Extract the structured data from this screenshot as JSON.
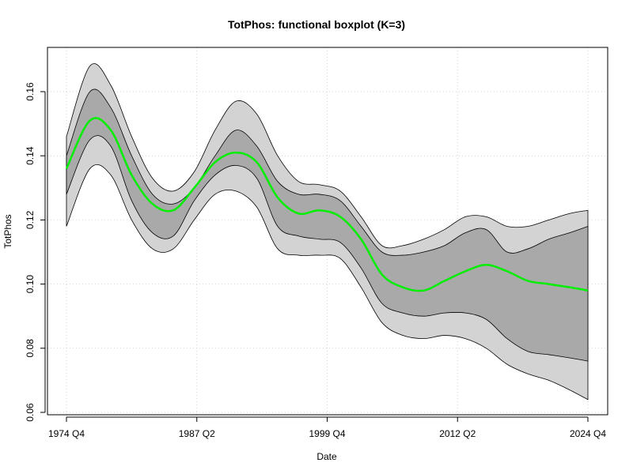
{
  "chart_data": {
    "type": "area",
    "title": "TotPhos: functional boxplot (K=3)",
    "xlabel": "Date",
    "ylabel": "TotPhos",
    "x_ticks": [
      "1974 Q4",
      "1987 Q2",
      "1999 Q4",
      "2012 Q2",
      "2024 Q4"
    ],
    "y_ticks": [
      "0.06",
      "0.08",
      "0.10",
      "0.12",
      "0.14",
      "0.16"
    ],
    "ylim": [
      0.06,
      0.17
    ],
    "grid": true,
    "x": [
      "1974 Q4",
      "1977 Q1",
      "1979 Q1",
      "1981 Q1",
      "1983 Q1",
      "1985 Q1",
      "1987 Q1",
      "1989 Q1",
      "1991 Q1",
      "1993 Q1",
      "1995 Q1",
      "1997 Q1",
      "1999 Q1",
      "2001 Q1",
      "2003 Q1",
      "2005 Q1",
      "2007 Q1",
      "2009 Q1",
      "2011 Q1",
      "2013 Q1",
      "2015 Q1",
      "2017 Q1",
      "2019 Q1",
      "2021 Q1",
      "2023 Q1",
      "2024 Q4"
    ],
    "bands": [
      {
        "role": "outer-envelope",
        "color": "#d3d3d3",
        "upper": [
          0.146,
          0.168,
          0.162,
          0.146,
          0.133,
          0.129,
          0.135,
          0.148,
          0.157,
          0.153,
          0.14,
          0.132,
          0.131,
          0.129,
          0.121,
          0.112,
          0.112,
          0.114,
          0.117,
          0.121,
          0.121,
          0.118,
          0.118,
          0.12,
          0.122,
          0.123
        ],
        "lower": [
          0.118,
          0.136,
          0.134,
          0.12,
          0.111,
          0.111,
          0.12,
          0.128,
          0.129,
          0.124,
          0.111,
          0.109,
          0.109,
          0.108,
          0.099,
          0.088,
          0.084,
          0.083,
          0.084,
          0.083,
          0.08,
          0.075,
          0.072,
          0.07,
          0.067,
          0.064
        ]
      },
      {
        "role": "central-50-percent",
        "color": "#a9a9a9",
        "upper": [
          0.14,
          0.16,
          0.155,
          0.14,
          0.128,
          0.125,
          0.13,
          0.14,
          0.148,
          0.143,
          0.132,
          0.128,
          0.128,
          0.126,
          0.118,
          0.11,
          0.109,
          0.11,
          0.112,
          0.116,
          0.117,
          0.11,
          0.111,
          0.114,
          0.116,
          0.118
        ],
        "lower": [
          0.128,
          0.145,
          0.143,
          0.126,
          0.116,
          0.115,
          0.126,
          0.134,
          0.137,
          0.133,
          0.118,
          0.115,
          0.114,
          0.113,
          0.105,
          0.094,
          0.091,
          0.09,
          0.091,
          0.091,
          0.089,
          0.083,
          0.079,
          0.078,
          0.077,
          0.076
        ]
      }
    ],
    "series": [
      {
        "role": "median",
        "color": "#00ee00",
        "values": [
          0.136,
          0.151,
          0.148,
          0.134,
          0.125,
          0.123,
          0.13,
          0.138,
          0.141,
          0.138,
          0.127,
          0.122,
          0.123,
          0.121,
          0.114,
          0.103,
          0.099,
          0.098,
          0.101,
          0.104,
          0.106,
          0.104,
          0.101,
          0.1,
          0.099,
          0.098
        ]
      }
    ]
  }
}
